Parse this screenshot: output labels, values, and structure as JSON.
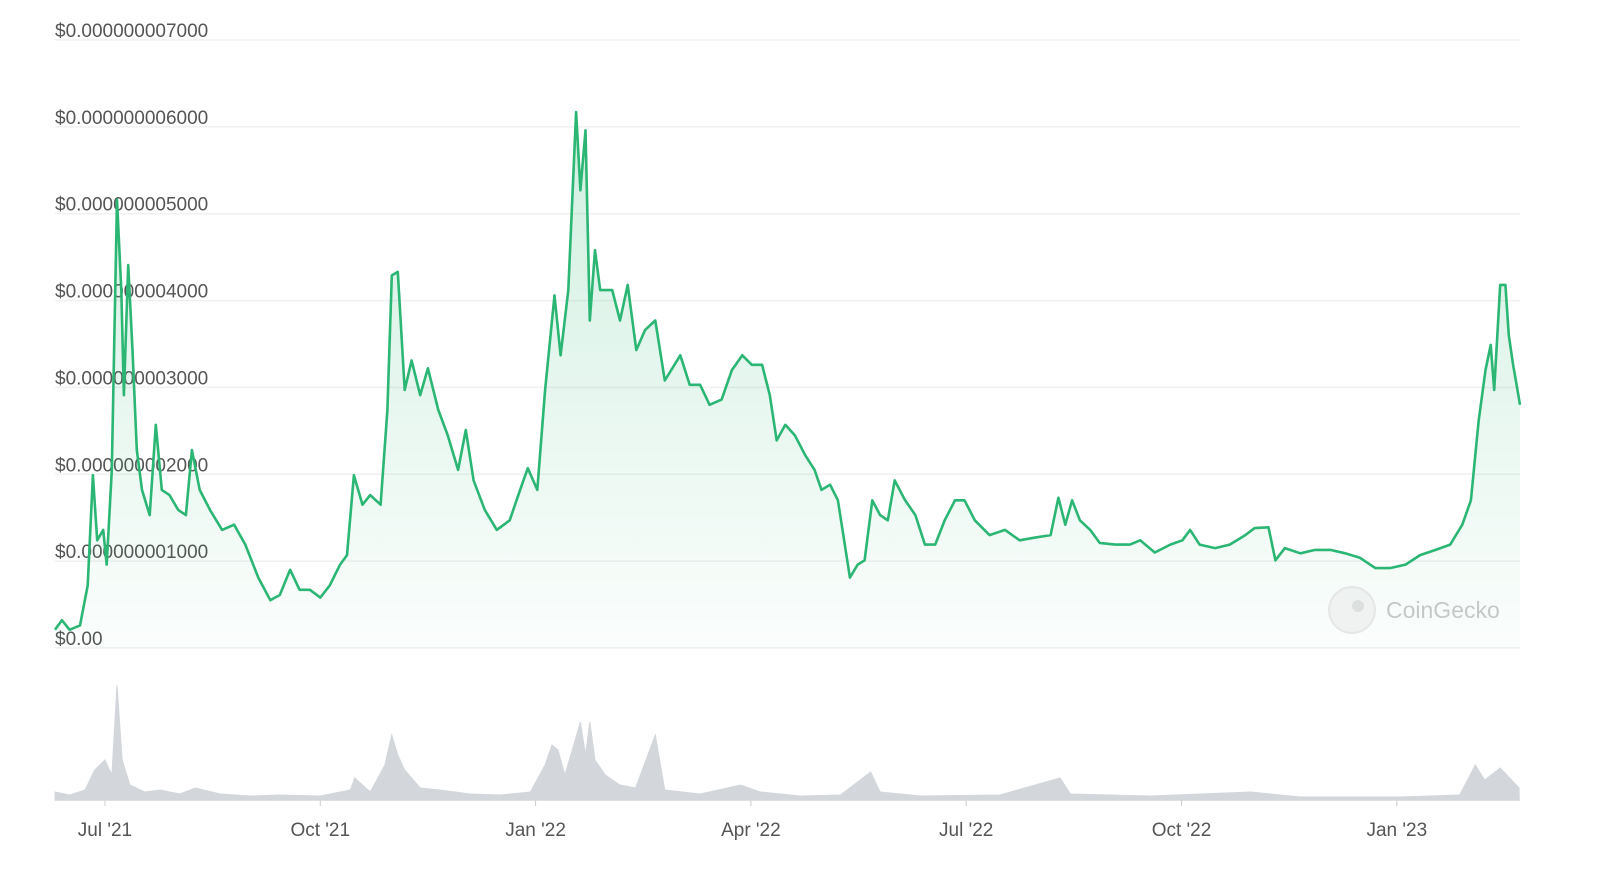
{
  "chart_data": {
    "type": "line",
    "color": "#2bb673",
    "grid": true,
    "watermark": "CoinGecko",
    "xlim": [
      2021.442,
      2023.143
    ],
    "ylim": [
      0,
      7e-09
    ],
    "xticks": [
      {
        "value": 2021.5,
        "label": "Jul '21"
      },
      {
        "value": 2021.75,
        "label": "Oct '21"
      },
      {
        "value": 2022.0,
        "label": "Jan '22"
      },
      {
        "value": 2022.25,
        "label": "Apr '22"
      },
      {
        "value": 2022.5,
        "label": "Jul '22"
      },
      {
        "value": 2022.75,
        "label": "Oct '22"
      },
      {
        "value": 2023.0,
        "label": "Jan '23"
      }
    ],
    "yticks": [
      {
        "value": 0,
        "label": "$0.00"
      },
      {
        "value": 1e-09,
        "label": "$0.000000001000"
      },
      {
        "value": 2e-09,
        "label": "$0.000000002000"
      },
      {
        "value": 3e-09,
        "label": "$0.000000003000"
      },
      {
        "value": 4e-09,
        "label": "$0.000000004000"
      },
      {
        "value": 5e-09,
        "label": "$0.000000005000"
      },
      {
        "value": 6e-09,
        "label": "$0.000000006000"
      },
      {
        "value": 7e-09,
        "label": "$0.000000007000"
      }
    ],
    "x": [
      2021.442,
      2021.45,
      2021.459,
      2021.471,
      2021.48,
      2021.486,
      2021.491,
      2021.498,
      2021.502,
      2021.508,
      2021.514,
      2021.519,
      2021.522,
      2021.527,
      2021.532,
      2021.537,
      2021.543,
      2021.552,
      2021.559,
      2021.566,
      2021.575,
      2021.585,
      2021.594,
      2021.601,
      2021.61,
      2021.622,
      2021.636,
      2021.65,
      2021.663,
      2021.678,
      2021.692,
      2021.703,
      2021.715,
      2021.726,
      2021.738,
      2021.75,
      2021.761,
      2021.773,
      2021.781,
      2021.789,
      2021.799,
      2021.808,
      2021.82,
      2021.828,
      2021.833,
      2021.84,
      2021.848,
      2021.856,
      2021.866,
      2021.875,
      2021.887,
      2021.898,
      2021.91,
      2021.919,
      2021.928,
      2021.941,
      2021.955,
      2021.97,
      2021.982,
      2021.991,
      2022.002,
      2022.011,
      2022.022,
      2022.029,
      2022.038,
      2022.047,
      2022.052,
      2022.058,
      2022.063,
      2022.069,
      2022.075,
      2022.089,
      2022.098,
      2022.107,
      2022.117,
      2022.127,
      2022.139,
      2022.15,
      2022.168,
      2022.179,
      2022.191,
      2022.202,
      2022.216,
      2022.228,
      2022.24,
      2022.251,
      2022.263,
      2022.272,
      2022.28,
      2022.29,
      2022.301,
      2022.313,
      2022.324,
      2022.332,
      2022.342,
      2022.351,
      2022.359,
      2022.365,
      2022.374,
      2022.382,
      2022.391,
      2022.4,
      2022.409,
      2022.417,
      2022.429,
      2022.441,
      2022.452,
      2022.464,
      2022.475,
      2022.487,
      2022.498,
      2022.51,
      2022.527,
      2022.545,
      2022.562,
      2022.579,
      2022.598,
      2022.607,
      2022.615,
      2022.623,
      2022.632,
      2022.644,
      2022.655,
      2022.673,
      2022.69,
      2022.702,
      2022.719,
      2022.737,
      2022.751,
      2022.76,
      2022.771,
      2022.789,
      2022.806,
      2022.824,
      2022.835,
      2022.851,
      2022.859,
      2022.87,
      2022.888,
      2022.905,
      2022.923,
      2022.94,
      2022.957,
      2022.975,
      2022.992,
      2023.01,
      2023.027,
      2023.045,
      2023.062,
      2023.076,
      2023.086,
      2023.095,
      2023.103,
      2023.109,
      2023.113,
      2023.12,
      2023.126,
      2023.13,
      2023.135,
      2023.139,
      2023.143
    ],
    "values": [
      2.1e-10,
      3.2e-10,
      2.1e-10,
      2.6e-10,
      7.2e-10,
      1.99e-09,
      1.24e-09,
      1.36e-09,
      9.6e-10,
      2.05e-09,
      5.16e-09,
      4.12e-09,
      2.91e-09,
      4.41e-09,
      3.43e-09,
      2.28e-09,
      1.82e-09,
      1.53e-09,
      2.57e-09,
      1.82e-09,
      1.76e-09,
      1.59e-09,
      1.53e-09,
      2.28e-09,
      1.82e-09,
      1.59e-09,
      1.36e-09,
      1.42e-09,
      1.19e-09,
      8.1e-10,
      5.5e-10,
      6.1e-10,
      9e-10,
      6.7e-10,
      6.7e-10,
      5.8e-10,
      7.2e-10,
      9.6e-10,
      1.07e-09,
      1.99e-09,
      1.65e-09,
      1.76e-09,
      1.65e-09,
      2.74e-09,
      4.29e-09,
      4.33e-09,
      2.97e-09,
      3.31e-09,
      2.91e-09,
      3.22e-09,
      2.74e-09,
      2.45e-09,
      2.05e-09,
      2.51e-09,
      1.93e-09,
      1.59e-09,
      1.36e-09,
      1.47e-09,
      1.82e-09,
      2.07e-09,
      1.82e-09,
      2.97e-09,
      4.06e-09,
      3.37e-09,
      4.12e-09,
      6.17e-09,
      5.27e-09,
      5.96e-09,
      3.77e-09,
      4.58e-09,
      4.12e-09,
      4.12e-09,
      3.77e-09,
      4.18e-09,
      3.43e-09,
      3.66e-09,
      3.77e-09,
      3.08e-09,
      3.37e-09,
      3.03e-09,
      3.03e-09,
      2.8e-09,
      2.86e-09,
      3.2e-09,
      3.37e-09,
      3.26e-09,
      3.26e-09,
      2.91e-09,
      2.39e-09,
      2.57e-09,
      2.45e-09,
      2.22e-09,
      2.05e-09,
      1.82e-09,
      1.88e-09,
      1.7e-09,
      1.19e-09,
      8.1e-10,
      9.6e-10,
      1.01e-09,
      1.7e-09,
      1.53e-09,
      1.47e-09,
      1.93e-09,
      1.7e-09,
      1.53e-09,
      1.19e-09,
      1.19e-09,
      1.47e-09,
      1.7e-09,
      1.7e-09,
      1.47e-09,
      1.3e-09,
      1.36e-09,
      1.24e-09,
      1.27e-09,
      1.3e-09,
      1.73e-09,
      1.42e-09,
      1.7e-09,
      1.47e-09,
      1.36e-09,
      1.21e-09,
      1.19e-09,
      1.19e-09,
      1.24e-09,
      1.1e-09,
      1.19e-09,
      1.24e-09,
      1.36e-09,
      1.19e-09,
      1.15e-09,
      1.19e-09,
      1.3e-09,
      1.38e-09,
      1.39e-09,
      1.01e-09,
      1.15e-09,
      1.09e-09,
      1.13e-09,
      1.13e-09,
      1.09e-09,
      1.04e-09,
      9.2e-10,
      9.2e-10,
      9.6e-10,
      1.07e-09,
      1.13e-09,
      1.19e-09,
      1.42e-09,
      1.7e-09,
      2.62e-09,
      3.2e-09,
      3.49e-09,
      2.97e-09,
      4.18e-09,
      4.18e-09,
      3.6e-09,
      3.26e-09,
      3.03e-09,
      2.8e-09
    ],
    "volume": {
      "color": "#d3d6db",
      "x": [
        2021.442,
        2021.459,
        2021.477,
        2021.488,
        2021.5,
        2021.508,
        2021.514,
        2021.52,
        2021.529,
        2021.546,
        2021.564,
        2021.587,
        2021.605,
        2021.634,
        2021.668,
        2021.703,
        2021.75,
        2021.785,
        2021.79,
        2021.808,
        2021.825,
        2021.833,
        2021.84,
        2021.848,
        2021.866,
        2021.889,
        2021.924,
        2021.959,
        2021.994,
        2022.011,
        2022.019,
        2022.026,
        2022.034,
        2022.046,
        2022.052,
        2022.058,
        2022.063,
        2022.069,
        2022.081,
        2022.098,
        2022.116,
        2022.139,
        2022.15,
        2022.191,
        2022.238,
        2022.261,
        2022.307,
        2022.354,
        2022.389,
        2022.4,
        2022.447,
        2022.539,
        2022.609,
        2022.621,
        2022.714,
        2022.83,
        2022.888,
        2023.004,
        2023.073,
        2023.091,
        2023.102,
        2023.12,
        2023.131,
        2023.142
      ],
      "values": [
        8,
        5,
        10,
        30,
        40,
        25,
        115,
        40,
        15,
        8,
        10,
        6,
        12,
        6,
        4,
        5,
        4,
        10,
        22,
        8,
        35,
        65,
        45,
        30,
        12,
        10,
        6,
        5,
        8,
        35,
        55,
        50,
        25,
        60,
        78,
        45,
        78,
        40,
        25,
        15,
        12,
        65,
        10,
        6,
        15,
        8,
        4,
        5,
        28,
        8,
        4,
        5,
        22,
        6,
        4,
        8,
        3,
        3,
        5,
        35,
        20,
        32,
        22,
        12
      ]
    }
  }
}
